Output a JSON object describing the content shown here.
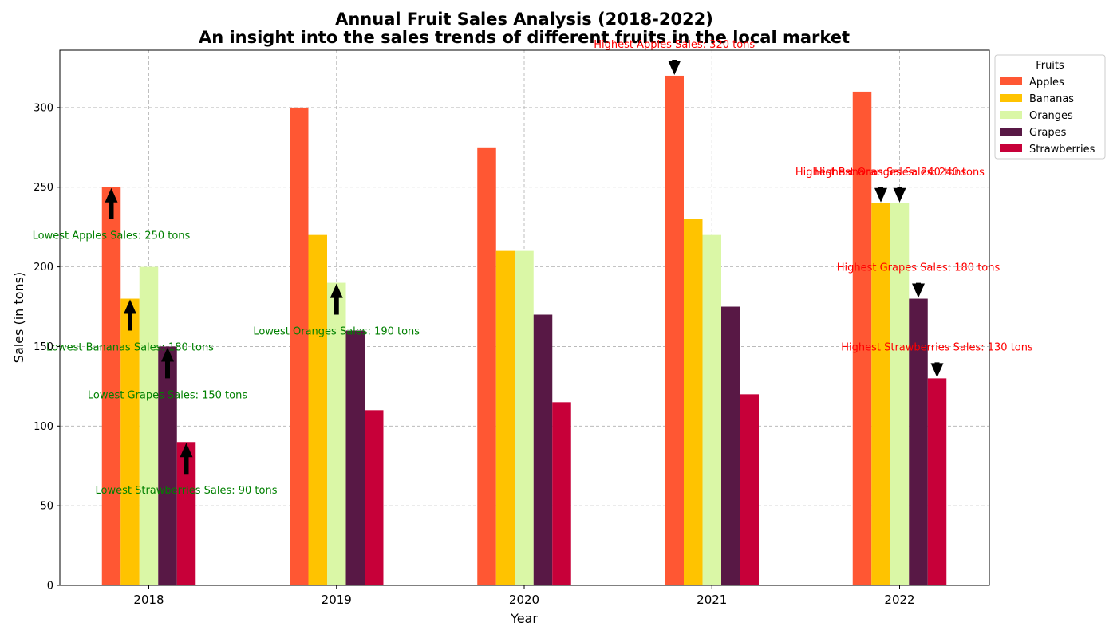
{
  "chart_data": {
    "type": "bar",
    "title": "Annual Fruit Sales Analysis (2018-2022)",
    "subtitle": "An insight into the sales trends of different fruits in the local market",
    "xlabel": "Year",
    "ylabel": "Sales (in tons)",
    "ylim": [
      0,
      336
    ],
    "yticks": [
      0,
      50,
      100,
      150,
      200,
      250,
      300
    ],
    "grid": true,
    "categories": [
      "2018",
      "2019",
      "2020",
      "2021",
      "2022"
    ],
    "legend": {
      "title": "Fruits",
      "placement": "outside-top-right"
    },
    "series": [
      {
        "name": "Apples",
        "color": "#ff5733",
        "values": [
          250,
          300,
          275,
          320,
          310
        ]
      },
      {
        "name": "Bananas",
        "color": "#ffc300",
        "values": [
          180,
          220,
          210,
          230,
          240
        ]
      },
      {
        "name": "Oranges",
        "color": "#daf7a6",
        "values": [
          200,
          190,
          210,
          220,
          240
        ]
      },
      {
        "name": "Grapes",
        "color": "#581845",
        "values": [
          150,
          160,
          170,
          175,
          180
        ]
      },
      {
        "name": "Strawberries",
        "color": "#c70039",
        "values": [
          90,
          110,
          115,
          120,
          130
        ]
      }
    ],
    "annotations": [
      {
        "text": "Lowest Apples Sales: 250 tons",
        "kind": "lowest",
        "series": 0,
        "category": 0,
        "value": 250,
        "color": "#008000"
      },
      {
        "text": "Lowest Bananas Sales: 180 tons",
        "kind": "lowest",
        "series": 1,
        "category": 0,
        "value": 180,
        "color": "#008000"
      },
      {
        "text": "Lowest Oranges Sales: 190 tons",
        "kind": "lowest",
        "series": 2,
        "category": 1,
        "value": 190,
        "color": "#008000"
      },
      {
        "text": "Lowest Grapes Sales: 150 tons",
        "kind": "lowest",
        "series": 3,
        "category": 0,
        "value": 150,
        "color": "#008000"
      },
      {
        "text": "Lowest Strawberries Sales: 90 tons",
        "kind": "lowest",
        "series": 4,
        "category": 0,
        "value": 90,
        "color": "#008000"
      },
      {
        "text": "Highest Apples Sales: 320 tons",
        "kind": "highest",
        "series": 0,
        "category": 3,
        "value": 320,
        "color": "#ff0000"
      },
      {
        "text": "Highest Bananas Sales: 240 tons",
        "kind": "highest",
        "series": 1,
        "category": 4,
        "value": 240,
        "color": "#ff0000"
      },
      {
        "text": "Highest Oranges Sales: 240 tons",
        "kind": "highest",
        "series": 2,
        "category": 4,
        "value": 240,
        "color": "#ff0000"
      },
      {
        "text": "Highest Grapes Sales: 180 tons",
        "kind": "highest",
        "series": 3,
        "category": 4,
        "value": 180,
        "color": "#ff0000"
      },
      {
        "text": "Highest Strawberries Sales: 130 tons",
        "kind": "highest",
        "series": 4,
        "category": 4,
        "value": 130,
        "color": "#ff0000"
      }
    ]
  }
}
